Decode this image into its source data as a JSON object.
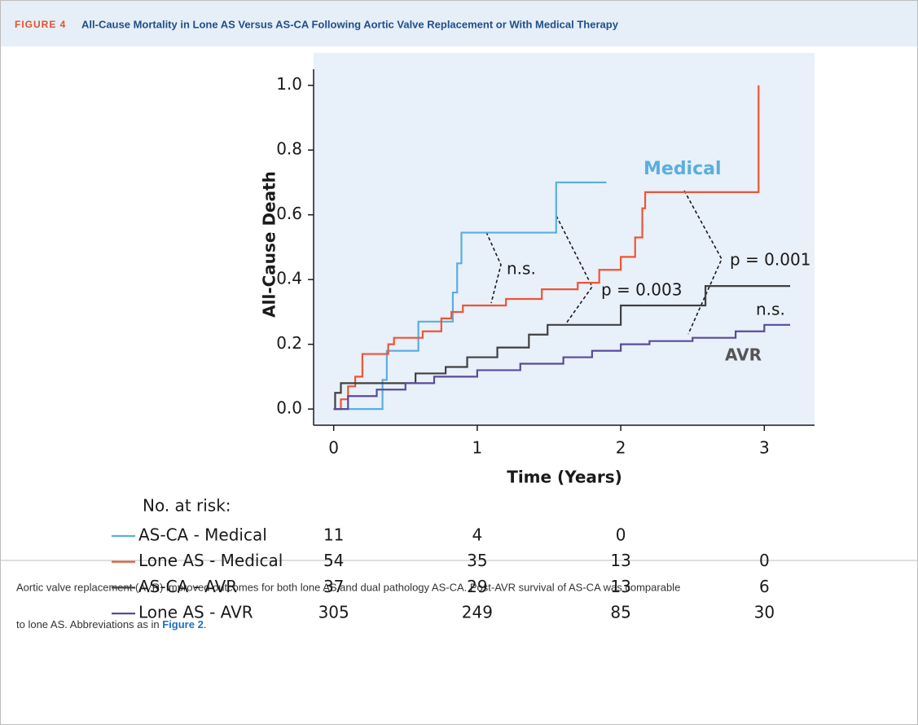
{
  "figure": {
    "label": "FIGURE 4",
    "title": "All-Cause Mortality in Lone AS Versus AS-CA Following Aortic Valve Replacement or With Medical Therapy"
  },
  "chart_data": {
    "type": "step",
    "x_label": "Time (Years)",
    "y_label": "All-Cause Death",
    "xlim": [
      -0.14,
      3.35
    ],
    "xticks": [
      0,
      1,
      2,
      3
    ],
    "ylim": [
      -0.05,
      1.1
    ],
    "yticks": [
      {
        "value": 0,
        "label": "0.0"
      },
      {
        "value": 0.2,
        "label": "0.2"
      },
      {
        "value": 0.4,
        "label": "0.4"
      },
      {
        "value": 0.6,
        "label": "0.6"
      },
      {
        "value": 0.8,
        "label": "0.8"
      },
      {
        "value": 1,
        "label": "1.0"
      }
    ],
    "series": [
      {
        "name": "AS-CA - Medical",
        "color": "#5aaee0",
        "x": [
          0,
          0.34,
          0.37,
          0.59,
          0.83,
          0.86,
          0.89,
          1.55,
          1.9
        ],
        "values": [
          0,
          0.09,
          0.18,
          0.27,
          0.36,
          0.45,
          0.545,
          0.7,
          0.7
        ],
        "at_risk": [
          11,
          4,
          0,
          null
        ]
      },
      {
        "name": "Lone AS - Medical",
        "color": "#ee5533",
        "x": [
          0,
          0.05,
          0.1,
          0.15,
          0.2,
          0.3,
          0.38,
          0.42,
          0.5,
          0.62,
          0.75,
          0.82,
          0.9,
          1.0,
          1.2,
          1.45,
          1.7,
          1.85,
          2.0,
          2.1,
          2.15,
          2.17,
          2.95,
          2.96
        ],
        "values": [
          0,
          0.03,
          0.07,
          0.1,
          0.17,
          0.17,
          0.2,
          0.22,
          0.22,
          0.24,
          0.28,
          0.3,
          0.32,
          0.32,
          0.34,
          0.37,
          0.39,
          0.43,
          0.47,
          0.53,
          0.62,
          0.67,
          0.67,
          1.0
        ],
        "at_risk": [
          54,
          35,
          13,
          0
        ]
      },
      {
        "name": "AS-CA - AVR",
        "color": "#404040",
        "x": [
          0,
          0.01,
          0.05,
          0.57,
          0.78,
          0.93,
          1.14,
          1.36,
          1.49,
          2.0,
          2.59,
          3.18
        ],
        "values": [
          0,
          0.05,
          0.08,
          0.11,
          0.13,
          0.16,
          0.19,
          0.23,
          0.26,
          0.32,
          0.38,
          0.38
        ],
        "at_risk": [
          37,
          29,
          13,
          6
        ]
      },
      {
        "name": "Lone AS - AVR",
        "color": "#5a4a9a",
        "x": [
          0,
          0.1,
          0.3,
          0.5,
          0.7,
          1.0,
          1.3,
          1.6,
          1.8,
          2.0,
          2.2,
          2.5,
          2.8,
          3.0,
          3.18
        ],
        "values": [
          0,
          0.04,
          0.06,
          0.08,
          0.1,
          0.12,
          0.14,
          0.16,
          0.18,
          0.2,
          0.21,
          0.22,
          0.24,
          0.26,
          0.26
        ],
        "at_risk": [
          305,
          249,
          85,
          30
        ]
      }
    ],
    "at_risk_title": "No. at risk:",
    "annotations": [
      "Medical",
      "AVR",
      "n.s.",
      "p = 0.003",
      "p = 0.001",
      "n.s."
    ]
  },
  "caption": {
    "line1": "Aortic valve replacement (AVR) improved outcomes for both lone AS and dual pathology AS-CA. Post-AVR survival of AS-CA was comparable",
    "line2": "to lone AS. Abbreviations as in ",
    "link": "Figure 2",
    "end": "."
  }
}
